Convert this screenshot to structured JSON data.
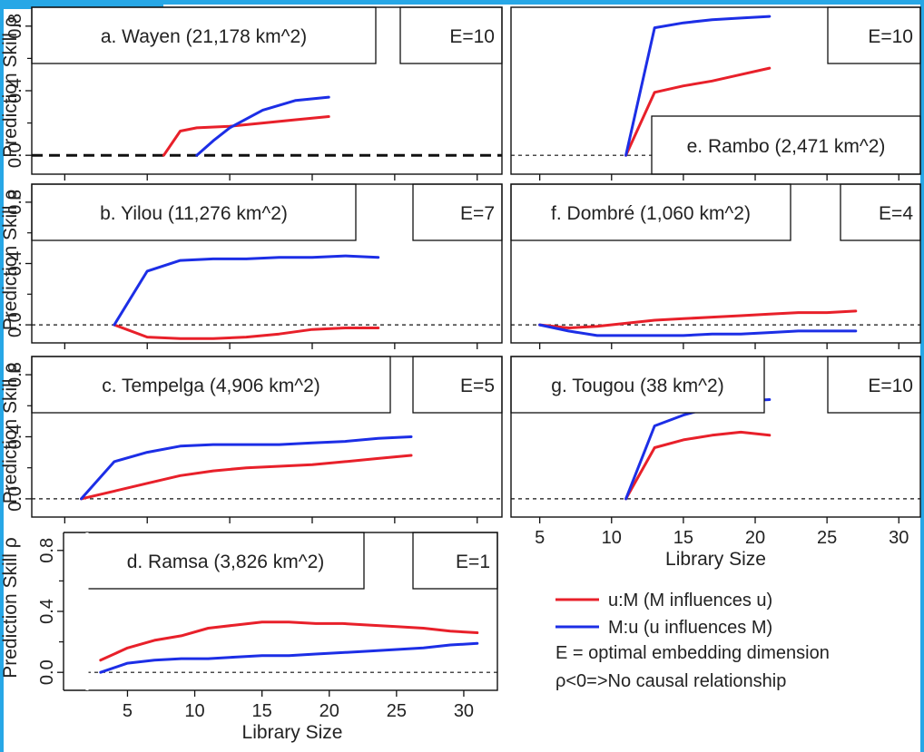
{
  "figure": {
    "ylabel": "Prediction Skill ρ",
    "xlabel": "Library Size",
    "accent_color": "#27a7e6"
  },
  "legend": {
    "items": [
      {
        "label": "u:M (M  influences u)",
        "color": "#e8202a"
      },
      {
        "label": "M:u (u  influences M)",
        "color": "#1c2ee6"
      }
    ],
    "notes": [
      "E = optimal embedding dimension",
      "ρ<0=>No causal relationship"
    ]
  },
  "chart_data": [
    {
      "type": "line",
      "panel": "a",
      "title": "a. Wayen (21,178 km^2)",
      "e_label": "E=10",
      "ylim": [
        -0.1,
        0.9
      ],
      "yticks": [
        0.0,
        0.4,
        0.8
      ],
      "xlim": [
        3,
        31.5
      ],
      "xticks": [
        5,
        10,
        15,
        20,
        25,
        30
      ],
      "reference_line": {
        "y": 0,
        "style": "thick-dashed"
      },
      "series": [
        {
          "name": "u:M",
          "color": "#e8202a",
          "x": [
            11,
            12,
            13,
            15,
            17,
            19,
            21
          ],
          "y": [
            0.0,
            0.15,
            0.17,
            0.18,
            0.2,
            0.22,
            0.24
          ]
        },
        {
          "name": "M:u",
          "color": "#1c2ee6",
          "x": [
            13,
            14,
            15,
            17,
            19,
            21
          ],
          "y": [
            0.0,
            0.09,
            0.17,
            0.28,
            0.34,
            0.36
          ]
        }
      ]
    },
    {
      "type": "line",
      "panel": "b",
      "title": "b. Yilou (11,276 km^2)",
      "e_label": "E=7",
      "ylim": [
        -0.1,
        0.9
      ],
      "yticks": [
        0.0,
        0.4,
        0.8
      ],
      "xlim": [
        3,
        31.5
      ],
      "xticks": [
        5,
        10,
        15,
        20,
        25,
        30
      ],
      "reference_line": {
        "y": 0,
        "style": "dashed"
      },
      "series": [
        {
          "name": "u:M",
          "color": "#e8202a",
          "x": [
            8,
            10,
            12,
            14,
            16,
            18,
            20,
            22,
            24
          ],
          "y": [
            0.0,
            -0.08,
            -0.09,
            -0.09,
            -0.08,
            -0.06,
            -0.03,
            -0.02,
            -0.02
          ]
        },
        {
          "name": "M:u",
          "color": "#1c2ee6",
          "x": [
            8,
            10,
            12,
            14,
            16,
            18,
            20,
            22,
            24
          ],
          "y": [
            0.0,
            0.35,
            0.42,
            0.43,
            0.43,
            0.44,
            0.44,
            0.45,
            0.44
          ]
        }
      ]
    },
    {
      "type": "line",
      "panel": "c",
      "title": "c. Tempelga (4,906 km^2)",
      "e_label": "E=5",
      "ylim": [
        -0.1,
        0.9
      ],
      "yticks": [
        0.0,
        0.4,
        0.8
      ],
      "xlim": [
        3,
        31.5
      ],
      "xticks": [
        5,
        10,
        15,
        20,
        25,
        30
      ],
      "reference_line": {
        "y": 0,
        "style": "dashed"
      },
      "series": [
        {
          "name": "u:M",
          "color": "#e8202a",
          "x": [
            6,
            8,
            10,
            12,
            14,
            16,
            18,
            20,
            22,
            24,
            26
          ],
          "y": [
            0.0,
            0.05,
            0.1,
            0.15,
            0.18,
            0.2,
            0.21,
            0.22,
            0.24,
            0.26,
            0.28
          ]
        },
        {
          "name": "M:u",
          "color": "#1c2ee6",
          "x": [
            6,
            8,
            10,
            12,
            14,
            16,
            18,
            20,
            22,
            24,
            26
          ],
          "y": [
            0.0,
            0.24,
            0.3,
            0.34,
            0.35,
            0.35,
            0.35,
            0.36,
            0.37,
            0.39,
            0.4
          ]
        }
      ]
    },
    {
      "type": "line",
      "panel": "d",
      "title": "d. Ramsa (3,826 km^2)",
      "e_label": "E=1",
      "ylim": [
        -0.1,
        0.9
      ],
      "yticks": [
        0.0,
        0.4,
        0.8
      ],
      "xlim": [
        2,
        32.5
      ],
      "xticks": [
        5,
        10,
        15,
        20,
        25,
        30
      ],
      "reference_line": {
        "y": 0,
        "style": "dashed"
      },
      "series": [
        {
          "name": "u:M",
          "color": "#e8202a",
          "x": [
            3,
            5,
            7,
            9,
            11,
            13,
            15,
            17,
            19,
            21,
            23,
            25,
            27,
            29,
            31
          ],
          "y": [
            0.08,
            0.16,
            0.21,
            0.24,
            0.29,
            0.31,
            0.33,
            0.33,
            0.32,
            0.32,
            0.31,
            0.3,
            0.29,
            0.27,
            0.26
          ]
        },
        {
          "name": "M:u",
          "color": "#1c2ee6",
          "x": [
            3,
            5,
            7,
            9,
            11,
            13,
            15,
            17,
            19,
            21,
            23,
            25,
            27,
            29,
            31
          ],
          "y": [
            0.0,
            0.06,
            0.08,
            0.09,
            0.09,
            0.1,
            0.11,
            0.11,
            0.12,
            0.13,
            0.14,
            0.15,
            0.16,
            0.18,
            0.19
          ]
        }
      ]
    },
    {
      "type": "line",
      "panel": "e",
      "title": "e. Rambo (2,471 km^2)",
      "e_label": "E=10",
      "ylim": [
        -0.1,
        0.9
      ],
      "yticks": [
        0.0,
        0.4,
        0.8
      ],
      "xlim": [
        3,
        31.5
      ],
      "xticks": [
        5,
        10,
        15,
        20,
        25,
        30
      ],
      "reference_line": {
        "y": 0,
        "style": "dashed"
      },
      "series": [
        {
          "name": "u:M",
          "color": "#e8202a",
          "x": [
            11,
            13,
            15,
            17,
            19,
            21
          ],
          "y": [
            0.0,
            0.39,
            0.43,
            0.46,
            0.5,
            0.54
          ]
        },
        {
          "name": "M:u",
          "color": "#1c2ee6",
          "x": [
            11,
            13,
            15,
            17,
            19,
            21
          ],
          "y": [
            0.0,
            0.79,
            0.82,
            0.84,
            0.85,
            0.86
          ]
        }
      ]
    },
    {
      "type": "line",
      "panel": "f",
      "title": "f. Dombré (1,060 km^2)",
      "e_label": "E=4",
      "ylim": [
        -0.1,
        0.9
      ],
      "yticks": [
        0.0,
        0.4,
        0.8
      ],
      "xlim": [
        3,
        31.5
      ],
      "xticks": [
        5,
        10,
        15,
        20,
        25,
        30
      ],
      "reference_line": {
        "y": 0,
        "style": "dashed"
      },
      "series": [
        {
          "name": "u:M",
          "color": "#e8202a",
          "x": [
            5,
            7,
            9,
            11,
            13,
            15,
            17,
            19,
            21,
            23,
            25,
            27
          ],
          "y": [
            0.0,
            -0.02,
            -0.01,
            0.01,
            0.03,
            0.04,
            0.05,
            0.06,
            0.07,
            0.08,
            0.08,
            0.09
          ]
        },
        {
          "name": "M:u",
          "color": "#1c2ee6",
          "x": [
            5,
            7,
            9,
            11,
            13,
            15,
            17,
            19,
            21,
            23,
            25,
            27
          ],
          "y": [
            0.0,
            -0.04,
            -0.07,
            -0.07,
            -0.07,
            -0.07,
            -0.06,
            -0.06,
            -0.05,
            -0.04,
            -0.04,
            -0.04
          ]
        }
      ]
    },
    {
      "type": "line",
      "panel": "g",
      "title": "g. Tougou (38 km^2)",
      "e_label": "E=10",
      "ylim": [
        -0.1,
        0.9
      ],
      "yticks": [
        0.0,
        0.4,
        0.8
      ],
      "xlim": [
        3,
        31.5
      ],
      "xticks": [
        5,
        10,
        15,
        20,
        25,
        30
      ],
      "reference_line": {
        "y": 0,
        "style": "dashed"
      },
      "series": [
        {
          "name": "u:M",
          "color": "#e8202a",
          "x": [
            11,
            13,
            15,
            17,
            19,
            21
          ],
          "y": [
            0.0,
            0.33,
            0.38,
            0.41,
            0.43,
            0.41
          ]
        },
        {
          "name": "M:u",
          "color": "#1c2ee6",
          "x": [
            11,
            13,
            15,
            17,
            19,
            21
          ],
          "y": [
            0.0,
            0.47,
            0.54,
            0.59,
            0.63,
            0.64
          ]
        }
      ]
    }
  ]
}
